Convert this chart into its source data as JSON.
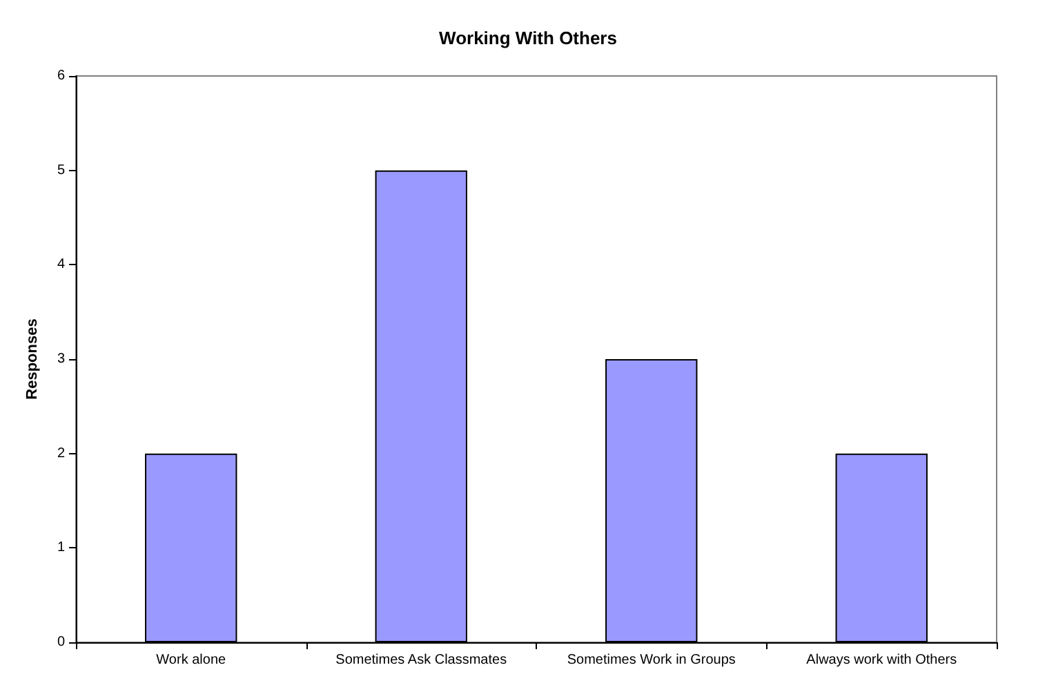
{
  "chart_data": {
    "type": "bar",
    "title": "Working With Others",
    "ylabel": "Responses",
    "categories": [
      "Work alone",
      "Sometimes Ask Classmates",
      "Sometimes Work in Groups",
      "Always work with Others"
    ],
    "values": [
      2,
      5,
      3,
      2
    ],
    "color": "#9999ff",
    "ylim": [
      0,
      6
    ],
    "yticks": [
      0,
      1,
      2,
      3,
      4,
      5,
      6
    ]
  }
}
